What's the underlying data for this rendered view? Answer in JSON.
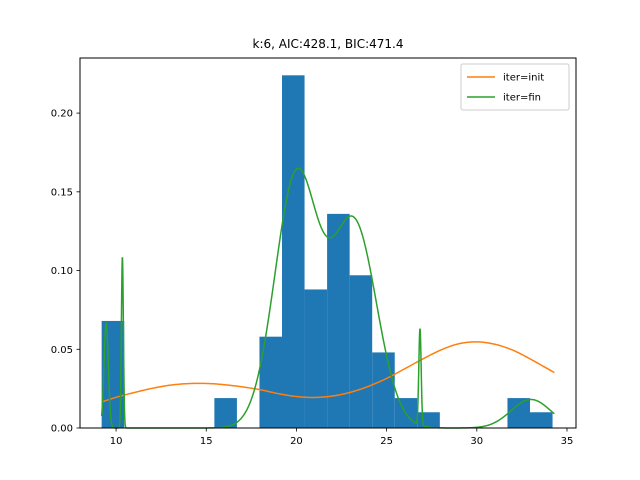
{
  "chart_data": {
    "type": "bar",
    "title": "k:6, AIC:428.1, BIC:471.4",
    "xlabel": "",
    "ylabel": "",
    "xlim": [
      8.0,
      35.5
    ],
    "ylim": [
      0.0,
      0.235
    ],
    "xticks": [
      10,
      15,
      20,
      25,
      30,
      35
    ],
    "yticks": [
      0.0,
      0.05,
      0.1,
      0.15,
      0.2
    ],
    "xtick_labels": [
      "10",
      "15",
      "20",
      "25",
      "30",
      "35"
    ],
    "ytick_labels": [
      "0.00",
      "0.05",
      "0.10",
      "0.15",
      "0.20"
    ],
    "legend_position": "top-right",
    "grid": false,
    "histogram": {
      "name": "",
      "color": "#1f77b4",
      "bins": [
        {
          "x0": 9.2,
          "x1": 10.45,
          "value": 0.068
        },
        {
          "x0": 10.45,
          "x1": 11.7,
          "value": 0.0
        },
        {
          "x0": 11.7,
          "x1": 12.95,
          "value": 0.0
        },
        {
          "x0": 12.95,
          "x1": 14.2,
          "value": 0.0
        },
        {
          "x0": 14.2,
          "x1": 15.45,
          "value": 0.0
        },
        {
          "x0": 15.45,
          "x1": 16.7,
          "value": 0.019
        },
        {
          "x0": 16.7,
          "x1": 17.95,
          "value": 0.0
        },
        {
          "x0": 17.95,
          "x1": 19.2,
          "value": 0.058
        },
        {
          "x0": 19.2,
          "x1": 20.45,
          "value": 0.224
        },
        {
          "x0": 20.45,
          "x1": 21.7,
          "value": 0.088
        },
        {
          "x0": 21.7,
          "x1": 22.95,
          "value": 0.136
        },
        {
          "x0": 22.95,
          "x1": 24.2,
          "value": 0.097
        },
        {
          "x0": 24.2,
          "x1": 25.45,
          "value": 0.048
        },
        {
          "x0": 25.45,
          "x1": 26.7,
          "value": 0.019
        },
        {
          "x0": 26.7,
          "x1": 27.95,
          "value": 0.01
        },
        {
          "x0": 27.95,
          "x1": 29.2,
          "value": 0.0
        },
        {
          "x0": 29.2,
          "x1": 30.45,
          "value": 0.0
        },
        {
          "x0": 30.45,
          "x1": 31.7,
          "value": 0.0
        },
        {
          "x0": 31.7,
          "x1": 32.95,
          "value": 0.019
        },
        {
          "x0": 32.95,
          "x1": 34.2,
          "value": 0.01
        }
      ]
    },
    "series": [
      {
        "name": "iter=init",
        "type": "line",
        "color": "#ff7f0e",
        "points": [
          [
            9.2,
            0.0165
          ],
          [
            10,
            0.0195
          ],
          [
            11,
            0.0225
          ],
          [
            12,
            0.0252
          ],
          [
            13,
            0.0272
          ],
          [
            14,
            0.0282
          ],
          [
            15,
            0.0283
          ],
          [
            16,
            0.0275
          ],
          [
            17,
            0.0261
          ],
          [
            18,
            0.0243
          ],
          [
            19,
            0.0218
          ],
          [
            20,
            0.02
          ],
          [
            21,
            0.0194
          ],
          [
            22,
            0.0203
          ],
          [
            23,
            0.0227
          ],
          [
            24,
            0.0265
          ],
          [
            25,
            0.0315
          ],
          [
            26,
            0.0376
          ],
          [
            27,
            0.0438
          ],
          [
            28,
            0.0495
          ],
          [
            29,
            0.0535
          ],
          [
            30,
            0.0547
          ],
          [
            31,
            0.0532
          ],
          [
            32,
            0.0494
          ],
          [
            33,
            0.0436
          ],
          [
            34.3,
            0.0352
          ]
        ]
      },
      {
        "name": "iter=fin",
        "type": "line",
        "color": "#2ca02c",
        "components": [
          {
            "weight": 0.02,
            "mean": 9.45,
            "sd": 0.12
          },
          {
            "weight": 0.015,
            "mean": 10.35,
            "sd": 0.055
          },
          {
            "weight": 0.48,
            "mean": 20.0,
            "sd": 1.2
          },
          {
            "weight": 0.405,
            "mean": 23.2,
            "sd": 1.25
          },
          {
            "weight": 0.01,
            "mean": 26.85,
            "sd": 0.065
          },
          {
            "weight": 0.05,
            "mean": 33.0,
            "sd": 1.1
          }
        ],
        "x_range": [
          9.2,
          34.3
        ]
      }
    ]
  }
}
